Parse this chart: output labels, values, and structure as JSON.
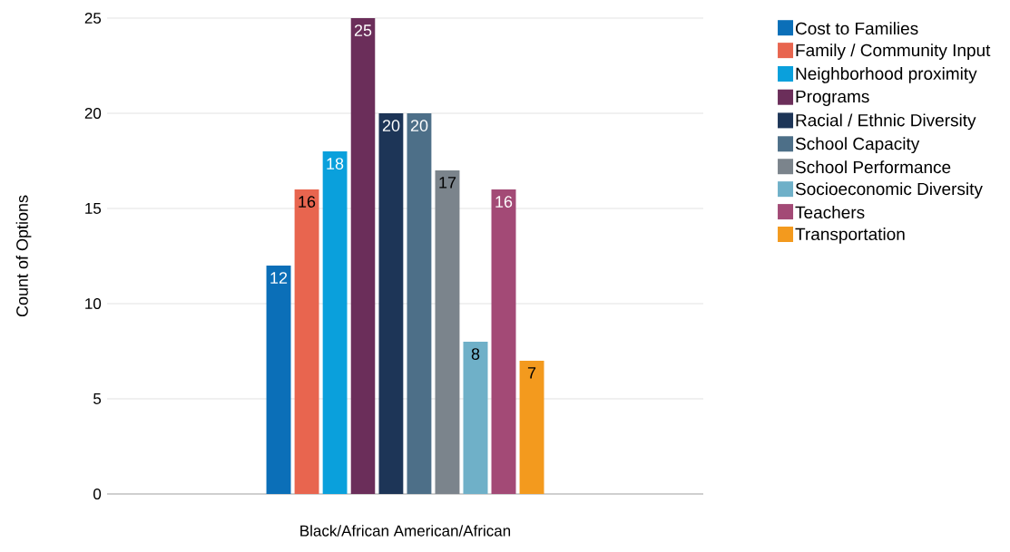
{
  "chart_data": {
    "type": "bar",
    "ylabel": "Count of Options",
    "categories": [
      "Black/African American/African"
    ],
    "series": [
      {
        "name": "Cost to Families",
        "color": "#0b6fb8",
        "values": [
          12
        ]
      },
      {
        "name": "Family / Community Input",
        "color": "#e8654f",
        "values": [
          16
        ]
      },
      {
        "name": "Neighborhood proximity",
        "color": "#0aa0dc",
        "values": [
          18
        ]
      },
      {
        "name": "Programs",
        "color": "#6b2e5a",
        "values": [
          25
        ]
      },
      {
        "name": "Racial / Ethnic Diversity",
        "color": "#1d3557",
        "values": [
          20
        ]
      },
      {
        "name": "School Capacity",
        "color": "#4d6f88",
        "values": [
          20
        ]
      },
      {
        "name": "School Performance",
        "color": "#7b848c",
        "values": [
          17
        ]
      },
      {
        "name": "Socioeconomic Diversity",
        "color": "#6fb0c8",
        "values": [
          8
        ]
      },
      {
        "name": "Teachers",
        "color": "#a34a76",
        "values": [
          16
        ]
      },
      {
        "name": "Transportation",
        "color": "#f39a1e",
        "values": [
          7
        ]
      }
    ],
    "ylim": [
      0,
      25
    ],
    "yticks": [
      0,
      5,
      10,
      15,
      20,
      25
    ],
    "grid": "y",
    "legend": "right",
    "data_labels": true
  }
}
